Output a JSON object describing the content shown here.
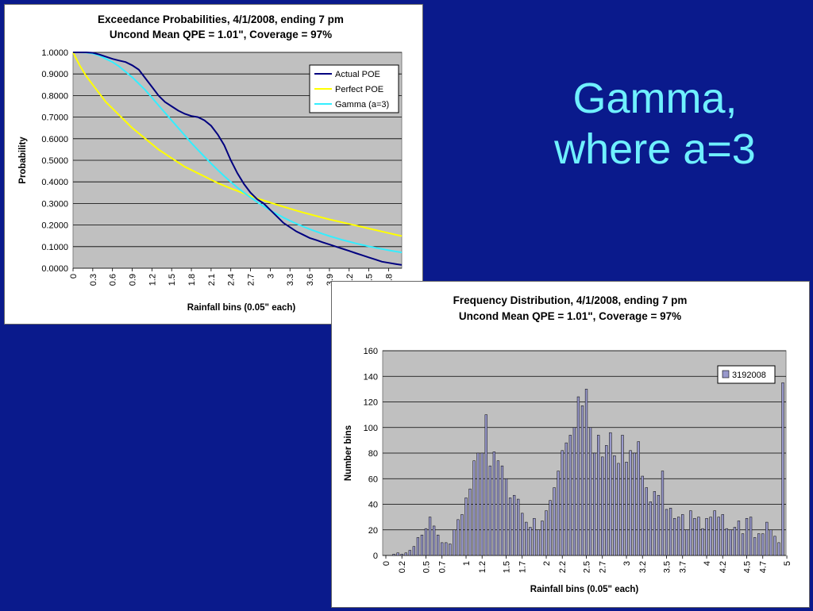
{
  "slide": {
    "title_line1": "Gamma,",
    "title_line2": "where a=3"
  },
  "chart_data": [
    {
      "type": "line",
      "title": "Exceedance Probabilities, 4/1/2008, ending 7 pm",
      "subtitle": "Uncond Mean QPE = 1.01\", Coverage = 97%",
      "xlabel": "Rainfall bins (0.05\" each)",
      "ylabel": "Probability",
      "ylim": [
        0,
        1
      ],
      "xlim": [
        0,
        5
      ],
      "grid": true,
      "legend_position": "top-right",
      "y_ticks": [
        "0.0000",
        "0.1000",
        "0.2000",
        "0.3000",
        "0.4000",
        "0.5000",
        "0.6000",
        "0.7000",
        "0.8000",
        "0.9000",
        "1.0000"
      ],
      "x_ticks": [
        "0",
        "0.3",
        "0.6",
        "0.9",
        "1.2",
        "1.5",
        "1.8",
        "2.1",
        "2.4",
        "2.7",
        "3",
        "3.3",
        "3.6",
        "3.9",
        "4.2",
        "4.5",
        "4.8"
      ],
      "series": [
        {
          "name": "Actual POE",
          "color": "#00007f",
          "x": [
            0,
            0.1,
            0.2,
            0.3,
            0.4,
            0.5,
            0.6,
            0.7,
            0.8,
            0.9,
            1.0,
            1.1,
            1.2,
            1.3,
            1.4,
            1.5,
            1.6,
            1.7,
            1.8,
            1.9,
            2.0,
            2.1,
            2.2,
            2.3,
            2.4,
            2.5,
            2.6,
            2.7,
            2.8,
            2.9,
            3.0,
            3.1,
            3.2,
            3.3,
            3.4,
            3.5,
            3.6,
            3.7,
            3.8,
            3.9,
            4.0,
            4.1,
            4.2,
            4.3,
            4.4,
            4.5,
            4.6,
            4.7,
            4.8,
            4.9,
            5.0
          ],
          "y": [
            1.0,
            1.0,
            1.0,
            0.998,
            0.99,
            0.98,
            0.97,
            0.962,
            0.955,
            0.94,
            0.92,
            0.88,
            0.84,
            0.8,
            0.77,
            0.75,
            0.73,
            0.715,
            0.705,
            0.7,
            0.685,
            0.66,
            0.62,
            0.57,
            0.5,
            0.44,
            0.39,
            0.35,
            0.32,
            0.3,
            0.27,
            0.24,
            0.21,
            0.19,
            0.17,
            0.155,
            0.14,
            0.13,
            0.12,
            0.11,
            0.1,
            0.09,
            0.08,
            0.07,
            0.06,
            0.05,
            0.04,
            0.03,
            0.025,
            0.02,
            0.015
          ]
        },
        {
          "name": "Perfect POE",
          "color": "#ffff00",
          "x": [
            0,
            0.1,
            0.2,
            0.3,
            0.4,
            0.5,
            0.6,
            0.7,
            0.8,
            0.9,
            1.0,
            1.1,
            1.2,
            1.3,
            1.4,
            1.5,
            1.6,
            1.7,
            1.8,
            1.9,
            2.0,
            2.1,
            2.2,
            2.3,
            2.4,
            2.5,
            2.6,
            2.7,
            2.8,
            2.9,
            3.0,
            3.1,
            3.2,
            3.3,
            3.4,
            3.5,
            3.6,
            3.7,
            3.8,
            3.9,
            4.0,
            4.1,
            4.2,
            4.3,
            4.4,
            4.5,
            4.6,
            4.7,
            4.8,
            4.9,
            5.0
          ],
          "y": [
            1.0,
            0.94,
            0.89,
            0.85,
            0.81,
            0.77,
            0.74,
            0.71,
            0.68,
            0.65,
            0.625,
            0.6,
            0.575,
            0.55,
            0.53,
            0.51,
            0.49,
            0.47,
            0.455,
            0.44,
            0.425,
            0.41,
            0.395,
            0.382,
            0.37,
            0.358,
            0.346,
            0.335,
            0.324,
            0.314,
            0.304,
            0.294,
            0.285,
            0.276,
            0.267,
            0.258,
            0.25,
            0.242,
            0.234,
            0.226,
            0.219,
            0.212,
            0.205,
            0.198,
            0.191,
            0.184,
            0.177,
            0.17,
            0.163,
            0.156,
            0.149
          ]
        },
        {
          "name": "Gamma (a=3)",
          "color": "#33eeff",
          "x": [
            0,
            0.1,
            0.2,
            0.3,
            0.4,
            0.5,
            0.6,
            0.7,
            0.8,
            0.9,
            1.0,
            1.1,
            1.2,
            1.3,
            1.4,
            1.5,
            1.6,
            1.7,
            1.8,
            1.9,
            2.0,
            2.1,
            2.2,
            2.3,
            2.4,
            2.5,
            2.6,
            2.7,
            2.8,
            2.9,
            3.0,
            3.1,
            3.2,
            3.3,
            3.4,
            3.5,
            3.6,
            3.7,
            3.8,
            3.9,
            4.0,
            4.1,
            4.2,
            4.3,
            4.4,
            4.5,
            4.6,
            4.7,
            4.8,
            4.9,
            5.0
          ],
          "y": [
            1.0,
            1.0,
            0.999,
            0.995,
            0.985,
            0.97,
            0.955,
            0.935,
            0.91,
            0.885,
            0.855,
            0.825,
            0.79,
            0.755,
            0.72,
            0.685,
            0.65,
            0.615,
            0.58,
            0.548,
            0.516,
            0.485,
            0.455,
            0.427,
            0.4,
            0.374,
            0.35,
            0.328,
            0.307,
            0.287,
            0.268,
            0.251,
            0.235,
            0.22,
            0.206,
            0.193,
            0.181,
            0.17,
            0.159,
            0.149,
            0.14,
            0.131,
            0.123,
            0.115,
            0.108,
            0.101,
            0.095,
            0.089,
            0.083,
            0.078,
            0.073
          ]
        }
      ]
    },
    {
      "type": "bar",
      "title": "Frequency Distribution, 4/1/2008, ending 7 pm",
      "subtitle": "Uncond Mean QPE = 1.01\", Coverage = 97%",
      "xlabel": "Rainfall bins (0.05\" each)",
      "ylabel": "Number bins",
      "ylim": [
        0,
        160
      ],
      "grid": true,
      "legend_position": "top-right",
      "y_ticks": [
        "0",
        "20",
        "40",
        "60",
        "80",
        "100",
        "120",
        "140",
        "160"
      ],
      "x_ticks": [
        "0",
        "0.2",
        "0.5",
        "0.7",
        "1",
        "1.2",
        "1.5",
        "1.7",
        "2",
        "2.2",
        "2.5",
        "2.7",
        "3",
        "3.2",
        "3.5",
        "3.7",
        "4",
        "4.2",
        "4.5",
        "4.7",
        "5"
      ],
      "series": [
        {
          "name": "3192008",
          "color": "#9999cc",
          "x_start": 0,
          "x_step": 0.05,
          "values": [
            0,
            0,
            1,
            2,
            1,
            2,
            4,
            7,
            14,
            16,
            21,
            30,
            23,
            16,
            10,
            10,
            9,
            20,
            28,
            32,
            45,
            52,
            74,
            80,
            80,
            110,
            70,
            81,
            74,
            70,
            60,
            45,
            47,
            44,
            33,
            26,
            22,
            29,
            20,
            27,
            35,
            43,
            53,
            66,
            82,
            88,
            94,
            100,
            124,
            117,
            130,
            100,
            80,
            94,
            77,
            86,
            96,
            78,
            72,
            94,
            73,
            82,
            80,
            89,
            62,
            53,
            42,
            50,
            47,
            66,
            36,
            37,
            29,
            30,
            32,
            20,
            35,
            29,
            30,
            21,
            29,
            30,
            35,
            30,
            32,
            21,
            20,
            22,
            27,
            17,
            29,
            30,
            14,
            17,
            17,
            26,
            20,
            15,
            10,
            135
          ]
        }
      ]
    }
  ]
}
